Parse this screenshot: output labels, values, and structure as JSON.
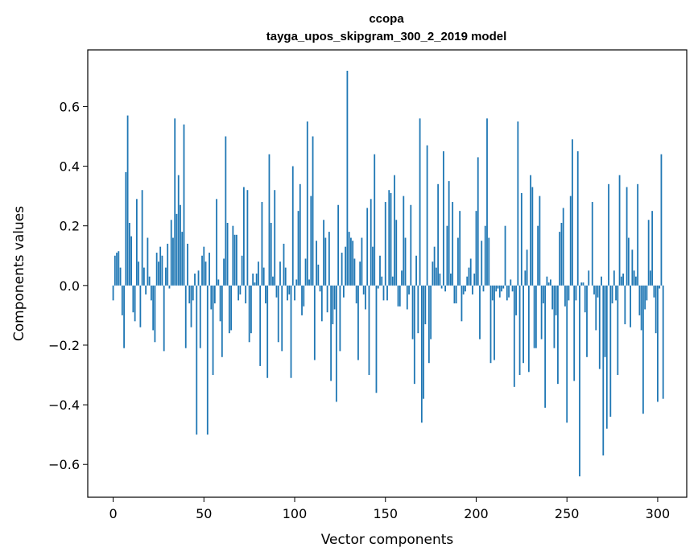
{
  "chart_data": {
    "type": "bar",
    "title": "ccopa",
    "subtitle": "tayga_upos_skipgram_300_2_2019 model",
    "xlabel": "Vector components",
    "ylabel": "Components values",
    "xlim": [
      -14,
      316
    ],
    "ylim": [
      -0.71,
      0.79
    ],
    "xticks": [
      0,
      50,
      100,
      150,
      200,
      250,
      300
    ],
    "xtick_labels": [
      "0",
      "50",
      "100",
      "150",
      "200",
      "250",
      "300"
    ],
    "yticks": [
      -0.6,
      -0.4,
      -0.2,
      0.0,
      0.2,
      0.4,
      0.6
    ],
    "ytick_labels": [
      "−0.6",
      "−0.4",
      "−0.2",
      "0.0",
      "0.2",
      "0.4",
      "0.6"
    ],
    "grid": false,
    "bar_color": "#1f77b4",
    "values": [
      -0.05,
      0.1,
      0.11,
      0.115,
      0.06,
      -0.1,
      -0.21,
      0.38,
      0.57,
      0.21,
      0.165,
      -0.09,
      -0.12,
      0.29,
      0.08,
      -0.14,
      0.32,
      0.06,
      -0.03,
      0.16,
      0.03,
      -0.05,
      -0.15,
      -0.19,
      0.11,
      0.08,
      0.13,
      0.1,
      -0.22,
      0.06,
      0.14,
      -0.01,
      0.22,
      0.16,
      0.56,
      0.24,
      0.37,
      0.27,
      0.18,
      0.54,
      -0.21,
      0.14,
      -0.06,
      -0.14,
      -0.05,
      0.04,
      -0.5,
      0.05,
      -0.21,
      0.1,
      0.13,
      0.08,
      -0.5,
      0.11,
      -0.08,
      -0.3,
      -0.06,
      0.29,
      0.02,
      -0.12,
      -0.24,
      0.09,
      0.5,
      0.21,
      -0.16,
      -0.15,
      0.2,
      0.17,
      0.17,
      -0.05,
      -0.03,
      0.1,
      0.33,
      -0.06,
      0.32,
      -0.19,
      -0.16,
      0.04,
      0.01,
      0.04,
      0.08,
      -0.27,
      0.28,
      0.06,
      -0.06,
      -0.31,
      0.44,
      0.21,
      0.03,
      0.32,
      -0.04,
      -0.19,
      0.08,
      -0.22,
      0.14,
      0.06,
      -0.05,
      -0.03,
      -0.31,
      0.4,
      -0.05,
      0.02,
      0.25,
      0.34,
      -0.1,
      -0.07,
      0.09,
      0.55,
      0.02,
      0.3,
      0.5,
      -0.25,
      0.15,
      0.07,
      -0.02,
      -0.12,
      0.22,
      0.16,
      -0.09,
      0.18,
      -0.32,
      -0.13,
      -0.08,
      -0.39,
      0.27,
      -0.22,
      0.11,
      -0.04,
      0.13,
      0.72,
      0.18,
      0.16,
      0.15,
      0.09,
      -0.06,
      -0.25,
      0.08,
      0.16,
      -0.03,
      -0.08,
      0.26,
      -0.3,
      0.29,
      0.13,
      0.44,
      -0.36,
      -0.01,
      0.1,
      0.03,
      -0.05,
      0.28,
      -0.05,
      0.32,
      0.31,
      0.03,
      0.37,
      0.22,
      -0.07,
      -0.07,
      0.05,
      0.3,
      0.16,
      -0.08,
      -0.03,
      0.27,
      -0.18,
      -0.33,
      0.1,
      -0.16,
      0.56,
      -0.46,
      -0.38,
      -0.13,
      0.47,
      -0.26,
      -0.18,
      0.08,
      0.13,
      0.06,
      0.34,
      0.04,
      -0.01,
      0.45,
      -0.02,
      0.2,
      0.35,
      0.04,
      0.28,
      -0.06,
      -0.06,
      0.16,
      0.25,
      -0.12,
      -0.03,
      -0.02,
      0.03,
      0.06,
      0.09,
      -0.03,
      0.04,
      0.25,
      0.43,
      -0.18,
      0.15,
      -0.02,
      0.2,
      0.56,
      0.16,
      -0.26,
      -0.05,
      -0.25,
      -0.02,
      -0.01,
      -0.04,
      -0.02,
      -0.01,
      0.2,
      -0.05,
      -0.04,
      0.02,
      -0.02,
      -0.34,
      -0.1,
      0.55,
      -0.3,
      0.31,
      -0.26,
      0.05,
      0.12,
      -0.29,
      0.37,
      0.33,
      -0.21,
      -0.21,
      0.2,
      0.3,
      -0.18,
      -0.06,
      -0.41,
      0.03,
      0.01,
      0.02,
      -0.08,
      -0.21,
      -0.1,
      -0.33,
      0.18,
      0.21,
      0.26,
      -0.07,
      -0.46,
      -0.05,
      0.3,
      0.49,
      -0.32,
      -0.05,
      0.45,
      -0.64,
      0.01,
      0.01,
      -0.09,
      -0.24,
      0.05,
      0.0,
      0.28,
      -0.03,
      -0.15,
      -0.04,
      -0.28,
      0.03,
      -0.57,
      -0.24,
      -0.48,
      0.34,
      -0.44,
      -0.06,
      0.05,
      -0.05,
      -0.3,
      0.37,
      0.03,
      0.04,
      -0.13,
      0.33,
      0.16,
      -0.14,
      0.12,
      0.05,
      0.03,
      0.34,
      -0.1,
      -0.15,
      -0.43,
      -0.08,
      -0.05,
      0.22,
      0.05,
      0.25,
      -0.04,
      -0.16,
      -0.39,
      -0.01,
      0.44,
      -0.38,
      0.0
    ]
  }
}
